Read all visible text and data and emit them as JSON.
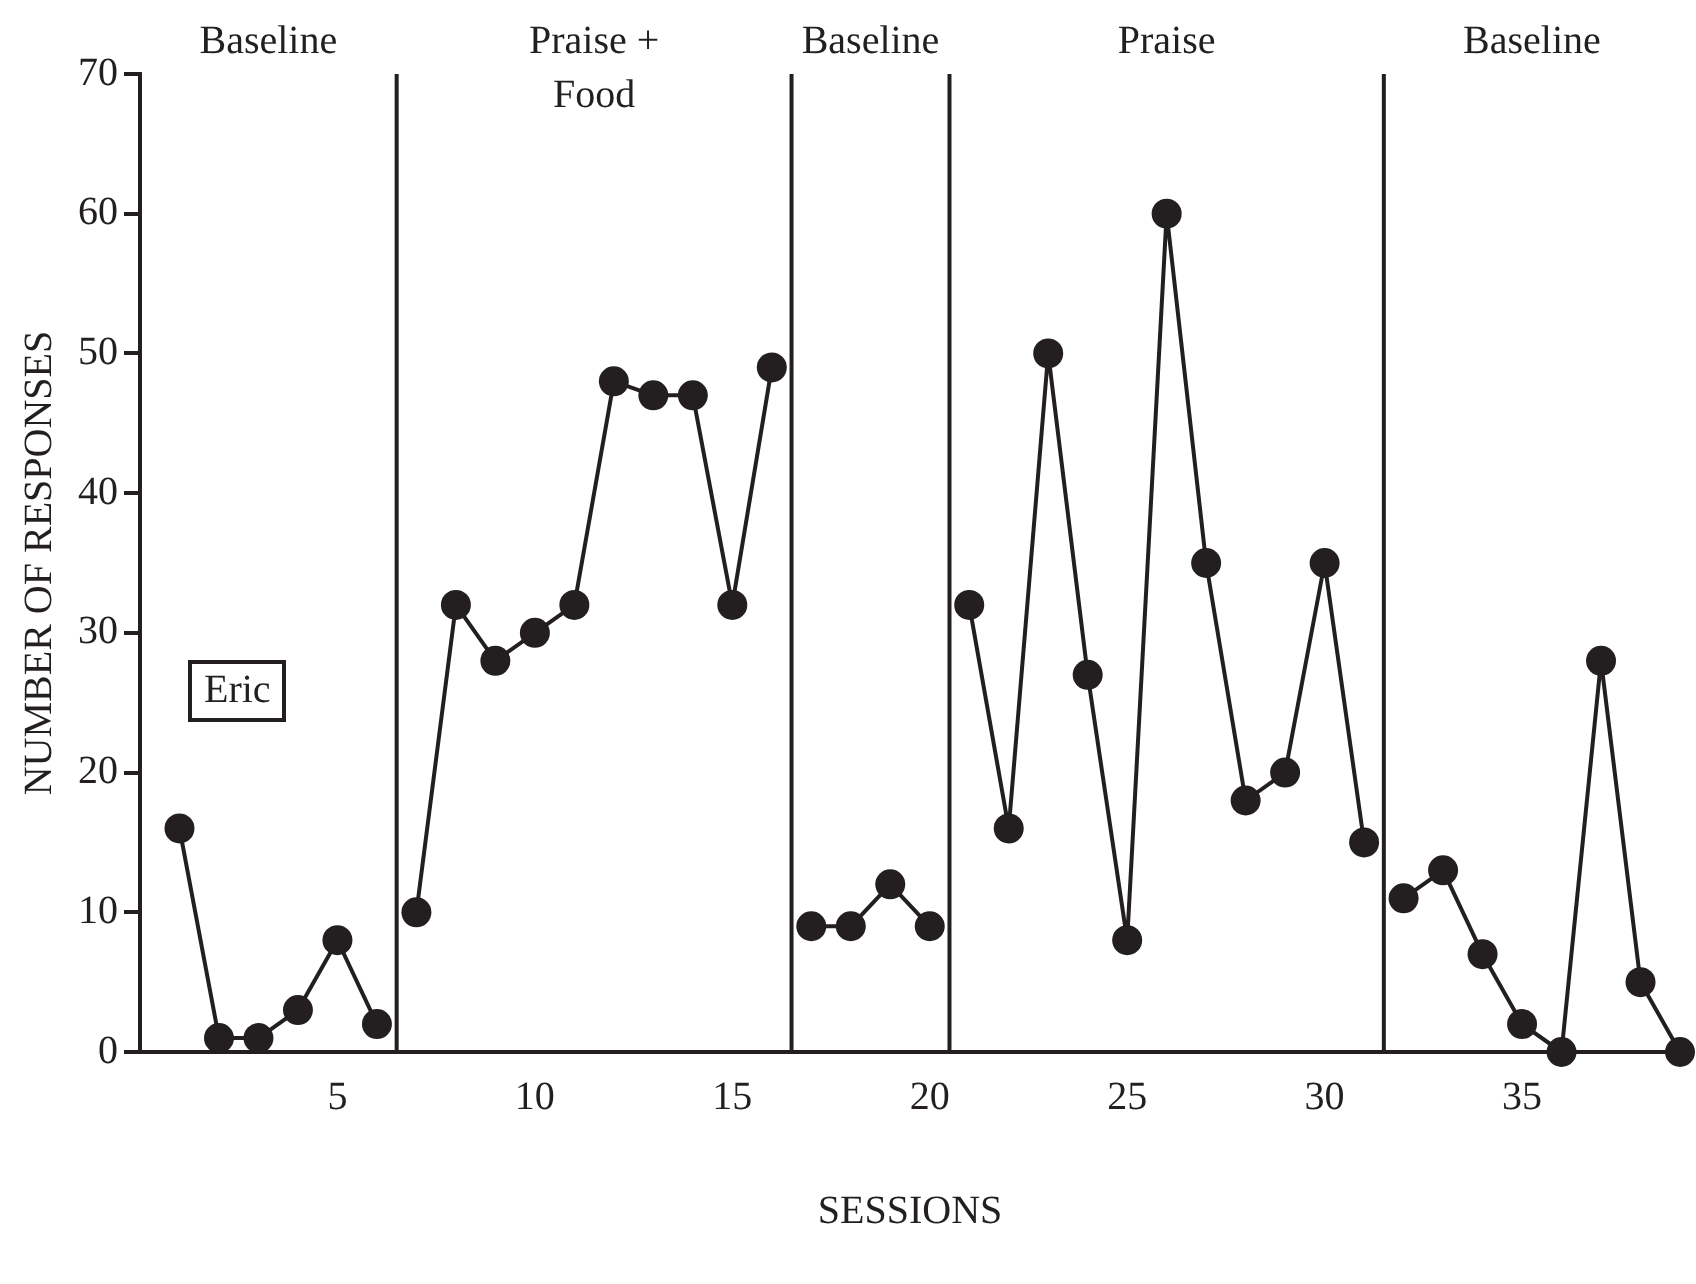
{
  "chart_data": {
    "type": "line",
    "xlabel": "SESSIONS",
    "ylabel": "NUMBER OF RESPONSES",
    "series": [
      {
        "color": "#231f20",
        "x": [
          1,
          2,
          3,
          4,
          5,
          6
        ],
        "values": [
          16,
          1,
          1,
          3,
          8,
          2
        ]
      },
      {
        "color": "#231f20",
        "x": [
          7,
          8,
          9,
          10,
          11,
          12,
          13,
          14,
          15,
          16
        ],
        "values": [
          10,
          32,
          28,
          30,
          32,
          48,
          47,
          47,
          32,
          49
        ]
      },
      {
        "color": "#231f20",
        "x": [
          17,
          18,
          19,
          20
        ],
        "values": [
          9,
          9,
          12,
          9
        ]
      },
      {
        "color": "#231f20",
        "x": [
          21,
          22,
          23,
          24,
          25,
          26,
          27,
          28,
          29,
          30,
          31
        ],
        "values": [
          32,
          16,
          50,
          27,
          8,
          60,
          35,
          18,
          20,
          35,
          15
        ]
      },
      {
        "color": "#231f20",
        "x": [
          32,
          33,
          34,
          35,
          36,
          37,
          38,
          39
        ],
        "values": [
          11,
          13,
          7,
          2,
          0,
          28,
          5,
          0
        ]
      }
    ],
    "xlim": [
      0,
      39
    ],
    "xticks": [
      5,
      10,
      15,
      20,
      25,
      30,
      35
    ],
    "ylim": [
      0,
      70
    ],
    "yticks": [
      0,
      10,
      20,
      30,
      40,
      50,
      60,
      70
    ],
    "ref_lines": [
      {
        "axis": "x",
        "value": 6.5,
        "color": "#231f20"
      },
      {
        "axis": "x",
        "value": 16.5,
        "color": "#231f20"
      },
      {
        "axis": "x",
        "value": 20.5,
        "color": "#231f20"
      },
      {
        "axis": "x",
        "value": 31.5,
        "color": "#231f20"
      }
    ],
    "annotations": [
      "Baseline",
      "Praise +\nFood",
      "Baseline",
      "Praise",
      "Baseline",
      "Eric"
    ],
    "grid": false,
    "legend": false,
    "marker": "circle",
    "line_style": "solid"
  }
}
